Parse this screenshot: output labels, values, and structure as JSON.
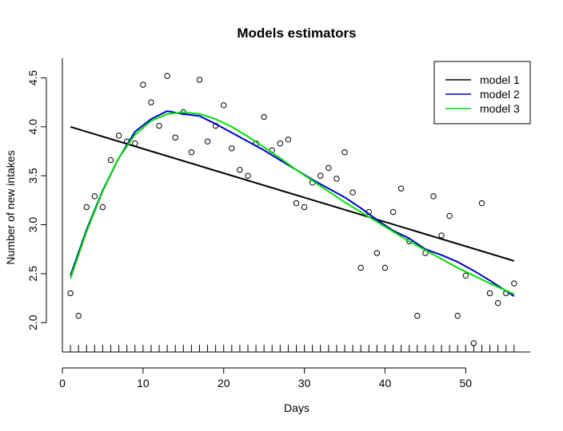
{
  "chart_data": {
    "type": "scatter",
    "title": "Models estimators",
    "xlabel": "Days",
    "ylabel": "Number of new intakes",
    "xlim": [
      0,
      58
    ],
    "ylim": [
      1.7,
      4.7
    ],
    "x_ticks": [
      0,
      10,
      20,
      30,
      40,
      50
    ],
    "x_tick_labels": [
      "0",
      "10",
      "20",
      "30",
      "40",
      "50"
    ],
    "y_ticks": [
      2.0,
      2.5,
      3.0,
      3.5,
      4.0,
      4.5
    ],
    "y_tick_labels": [
      "2.0",
      "2.5",
      "3.0",
      "3.5",
      "4.0",
      "4.5"
    ],
    "rug": true,
    "legend_position": "top-right",
    "points": {
      "x": [
        1,
        2,
        3,
        4,
        5,
        6,
        7,
        8,
        9,
        10,
        11,
        12,
        13,
        14,
        15,
        16,
        17,
        18,
        19,
        20,
        21,
        22,
        23,
        24,
        25,
        26,
        27,
        28,
        29,
        30,
        31,
        32,
        33,
        34,
        35,
        36,
        37,
        38,
        39,
        40,
        41,
        42,
        43,
        44,
        45,
        46,
        47,
        48,
        49,
        50,
        51,
        52,
        53,
        54,
        55,
        56
      ],
      "y": [
        2.3,
        2.07,
        3.18,
        3.29,
        3.18,
        3.66,
        3.91,
        3.85,
        3.83,
        4.43,
        4.25,
        4.01,
        4.52,
        3.89,
        4.15,
        3.74,
        4.48,
        3.85,
        4.01,
        4.22,
        3.78,
        3.56,
        3.5,
        3.83,
        4.1,
        3.76,
        3.83,
        3.87,
        3.22,
        3.18,
        3.43,
        3.5,
        3.58,
        3.47,
        3.74,
        3.33,
        2.56,
        3.13,
        2.71,
        2.56,
        3.13,
        3.37,
        2.83,
        2.07,
        2.71,
        3.29,
        2.89,
        3.09,
        2.07,
        2.48,
        1.79,
        3.22,
        2.3,
        2.2,
        2.3,
        2.4
      ]
    },
    "series": [
      {
        "name": "model 1",
        "color": "#000000",
        "x": [
          1,
          56
        ],
        "y": [
          4.0,
          2.63
        ]
      },
      {
        "name": "model 2",
        "color": "#0000cc",
        "x": [
          1,
          3,
          5,
          7,
          9,
          11,
          13,
          15,
          17,
          19,
          21,
          23,
          25,
          27,
          29,
          31,
          33,
          35,
          37,
          39,
          41,
          43,
          45,
          47,
          49,
          51,
          53,
          56
        ],
        "y": [
          2.48,
          2.95,
          3.35,
          3.68,
          3.95,
          4.08,
          4.16,
          4.13,
          4.11,
          4.03,
          3.94,
          3.85,
          3.76,
          3.66,
          3.56,
          3.46,
          3.37,
          3.28,
          3.17,
          3.05,
          2.94,
          2.86,
          2.75,
          2.69,
          2.62,
          2.53,
          2.43,
          2.27
        ]
      },
      {
        "name": "model 3",
        "color": "#00e000",
        "x": [
          1,
          3,
          5,
          7,
          9,
          11,
          13,
          15,
          17,
          19,
          21,
          23,
          25,
          27,
          29,
          31,
          33,
          35,
          37,
          39,
          41,
          43,
          45,
          47,
          49,
          51,
          53,
          56
        ],
        "y": [
          2.45,
          2.93,
          3.34,
          3.68,
          3.92,
          4.06,
          4.13,
          4.15,
          4.13,
          4.08,
          4.0,
          3.9,
          3.79,
          3.68,
          3.56,
          3.45,
          3.34,
          3.23,
          3.13,
          3.03,
          2.93,
          2.83,
          2.74,
          2.65,
          2.56,
          2.48,
          2.4,
          2.29
        ]
      }
    ]
  }
}
